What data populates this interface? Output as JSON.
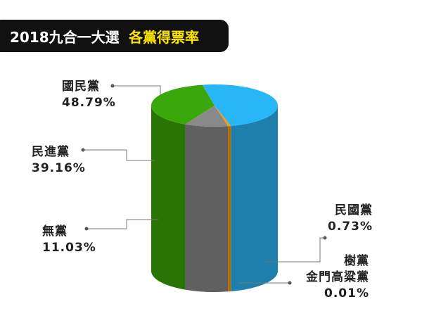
{
  "chart_data": {
    "type": "pie",
    "title": "2018九合一大選",
    "title_highlight": "各黨得票率",
    "categories": [
      "國民黨",
      "民進黨",
      "無黨",
      "民國黨",
      "樹黨\n金門高粱黨"
    ],
    "values": [
      48.79,
      39.16,
      11.03,
      0.73,
      0.01
    ],
    "value_labels": [
      "48.79%",
      "39.16%",
      "11.03%",
      "0.73%",
      "0.01%"
    ],
    "colors": [
      "#29b6f6",
      "#3aa80a",
      "#8a8a8a",
      "#ff9800",
      "#ffd54f"
    ]
  }
}
